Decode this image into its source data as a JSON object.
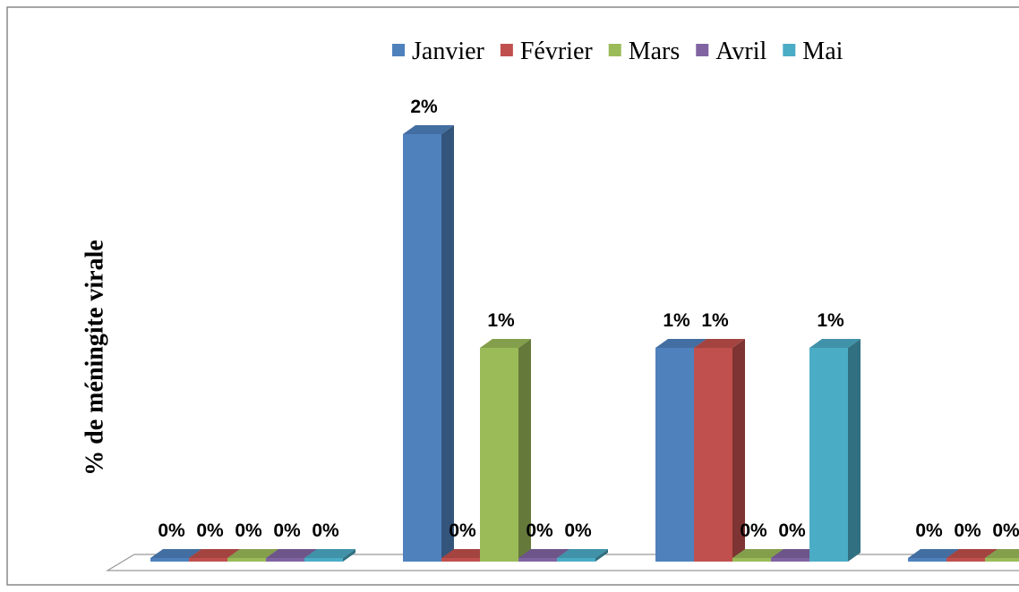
{
  "chart_data": {
    "type": "bar3d",
    "y_label": "% de méningite virale",
    "categories": [
      null,
      null,
      null,
      null
    ],
    "series": [
      {
        "name": "Janvier",
        "color": "#4f81bd",
        "values": [
          0,
          2,
          1,
          0
        ],
        "value_labels": [
          "0%",
          "2%",
          "1%",
          "0%"
        ]
      },
      {
        "name": "Février",
        "color": "#c0504d",
        "values": [
          0,
          0,
          1,
          0
        ],
        "value_labels": [
          "0%",
          "0%",
          "1%",
          "0%"
        ]
      },
      {
        "name": "Mars",
        "color": "#9bbb59",
        "values": [
          0,
          1,
          0,
          0
        ],
        "value_labels": [
          "0%",
          "1%",
          "0%",
          "0%"
        ]
      },
      {
        "name": "Avril",
        "color": "#8064a2",
        "values": [
          0,
          0,
          0,
          null
        ],
        "value_labels": [
          "0%",
          "0%",
          "0%",
          null
        ]
      },
      {
        "name": "Mai",
        "color": "#4bacc6",
        "values": [
          0,
          0,
          1,
          null
        ],
        "value_labels": [
          "0%",
          "0%",
          "1%",
          null
        ]
      }
    ],
    "legend": "top"
  }
}
